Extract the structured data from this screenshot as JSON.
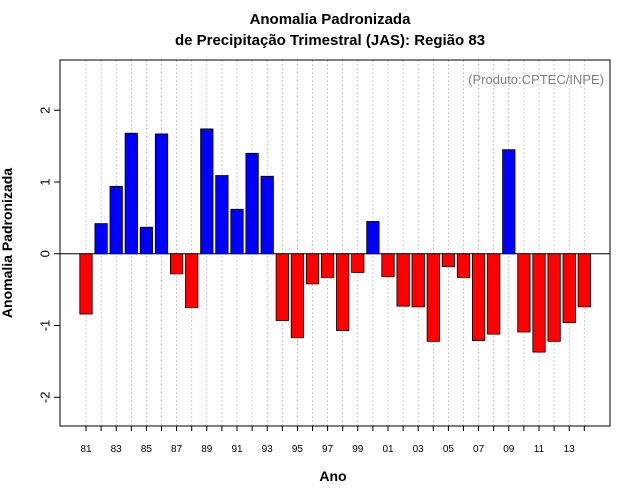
{
  "chart_data": {
    "type": "bar",
    "title": "Anomalia Padronizada",
    "subtitle": "de Precipitação Trimestral (JAS): Região 83",
    "xlabel": "Ano",
    "ylabel": "Anomalia Padronizada",
    "annotation": "(Produto:CPTEC/INPE)",
    "ylim": [
      -2.4,
      2.7
    ],
    "yticks": [
      -2,
      -1,
      0,
      1,
      2
    ],
    "ytick_labels": [
      "-2",
      "-1",
      "0",
      "1",
      "2"
    ],
    "categories": [
      "81",
      "82",
      "83",
      "84",
      "85",
      "86",
      "87",
      "88",
      "89",
      "90",
      "91",
      "92",
      "93",
      "94",
      "95",
      "96",
      "97",
      "98",
      "99",
      "00",
      "01",
      "02",
      "03",
      "04",
      "05",
      "06",
      "07",
      "08",
      "09",
      "10",
      "11",
      "12",
      "13",
      "14"
    ],
    "xtick_labels": [
      "81",
      "83",
      "85",
      "87",
      "89",
      "91",
      "93",
      "95",
      "97",
      "99",
      "01",
      "03",
      "05",
      "07",
      "09",
      "11",
      "13"
    ],
    "values": [
      -0.84,
      0.42,
      0.94,
      1.68,
      0.37,
      1.67,
      -0.28,
      -0.75,
      1.74,
      1.09,
      0.62,
      1.4,
      1.08,
      -0.93,
      -1.17,
      -0.42,
      -0.33,
      -1.07,
      -0.26,
      0.45,
      -0.32,
      -0.73,
      -0.74,
      -1.22,
      -0.18,
      -0.33,
      -1.21,
      -1.12,
      1.45,
      -1.09,
      -1.37,
      -1.22,
      -0.96,
      -0.74
    ],
    "positive_color": "#0000ff",
    "negative_color": "#ff0000",
    "grid": "vertical dotted",
    "zero_line": true
  }
}
